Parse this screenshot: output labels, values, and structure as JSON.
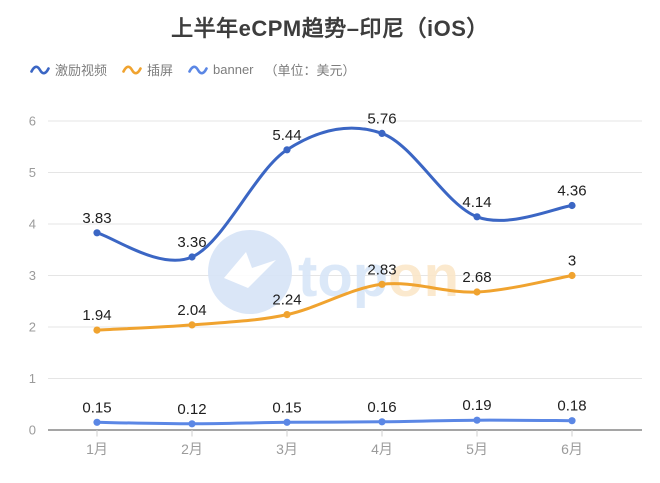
{
  "title": "上半年eCPM趋势–印尼（iOS）",
  "legend": {
    "items": [
      {
        "label": "激励视频",
        "color": "#3b66c4"
      },
      {
        "label": "插屏",
        "color": "#f0a32f"
      },
      {
        "label": "banner",
        "color": "#5b87e5"
      }
    ],
    "unit_note": "（单位：美元）"
  },
  "watermark": {
    "text_blue": "top",
    "text_orange": "on"
  },
  "chart_data": {
    "type": "line",
    "title": "上半年eCPM趋势–印尼（iOS）",
    "categories": [
      "1月",
      "2月",
      "3月",
      "4月",
      "5月",
      "6月"
    ],
    "series": [
      {
        "name": "激励视频",
        "color": "#3b66c4",
        "values": [
          3.83,
          3.36,
          5.44,
          5.76,
          4.14,
          4.36
        ]
      },
      {
        "name": "插屏",
        "color": "#f0a32f",
        "values": [
          1.94,
          2.04,
          2.24,
          2.83,
          2.68,
          3
        ]
      },
      {
        "name": "banner",
        "color": "#5b87e5",
        "values": [
          0.15,
          0.12,
          0.15,
          0.16,
          0.19,
          0.18
        ]
      }
    ],
    "xlabel": "",
    "ylabel": "",
    "ylim": [
      0,
      6
    ],
    "yticks": [
      0,
      1,
      2,
      3,
      4,
      5,
      6
    ],
    "grid": true,
    "curve": "smooth",
    "legend_position": "top-left",
    "colors": {
      "grid_line": "#e5e5e5",
      "axis_line": "#6f6f6f",
      "axis_label": "#9b9b9b",
      "value_label": "#202020"
    }
  }
}
